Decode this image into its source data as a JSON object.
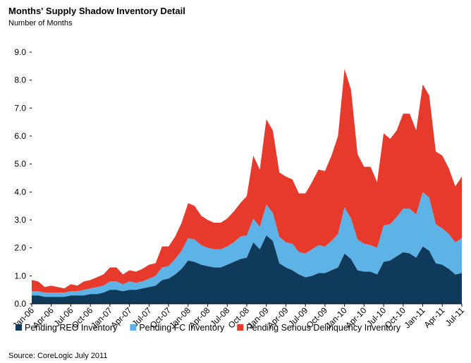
{
  "chart_data": {
    "type": "stacked_area",
    "title": "Months' Supply Shadow Inventory Detail",
    "subtitle": "Number of Months",
    "source": "Source: CoreLogic July 2011",
    "categories": [
      "Jan-06",
      null,
      null,
      "Apr-06",
      null,
      null,
      "Jul-06",
      null,
      null,
      "Oct-06",
      null,
      null,
      "Jan-07",
      null,
      null,
      "Apr-07",
      null,
      null,
      "Jul-07",
      null,
      null,
      "Oct-07",
      null,
      null,
      "Jan-08",
      null,
      null,
      "Apr-08",
      null,
      null,
      "Jul-08",
      null,
      null,
      "Oct-08",
      null,
      null,
      "Jan-09",
      null,
      null,
      "Apr-09",
      null,
      null,
      "Jul-09",
      null,
      null,
      "Oct-09",
      null,
      null,
      "Jan-10",
      null,
      null,
      "Apr-10",
      null,
      null,
      "Jul-10",
      null,
      null,
      "Oct-10",
      null,
      null,
      "Jan-11",
      null,
      null,
      "Apr-11",
      null,
      null,
      "Jul-11"
    ],
    "series": [
      {
        "name": "Pending REO Inventory",
        "color": "#0f3a5a",
        "values": [
          0.3,
          0.3,
          0.25,
          0.25,
          0.25,
          0.25,
          0.3,
          0.3,
          0.3,
          0.35,
          0.35,
          0.4,
          0.5,
          0.5,
          0.45,
          0.5,
          0.5,
          0.55,
          0.6,
          0.65,
          0.85,
          0.9,
          1.05,
          1.25,
          1.55,
          1.5,
          1.4,
          1.35,
          1.3,
          1.3,
          1.4,
          1.5,
          1.6,
          1.65,
          2.2,
          1.95,
          2.45,
          2.25,
          1.45,
          1.3,
          1.2,
          1.05,
          0.95,
          1.0,
          1.1,
          1.1,
          1.2,
          1.3,
          1.8,
          1.6,
          1.2,
          1.15,
          1.15,
          1.05,
          1.5,
          1.55,
          1.7,
          1.85,
          1.8,
          1.65,
          2.05,
          1.9,
          1.45,
          1.4,
          1.25,
          1.05,
          1.1
        ]
      },
      {
        "name": "Pending FC Inventory",
        "color": "#5db3e6",
        "values": [
          0.15,
          0.15,
          0.15,
          0.15,
          0.15,
          0.15,
          0.15,
          0.15,
          0.2,
          0.2,
          0.25,
          0.25,
          0.3,
          0.3,
          0.25,
          0.3,
          0.25,
          0.25,
          0.3,
          0.35,
          0.45,
          0.45,
          0.55,
          0.65,
          0.8,
          0.8,
          0.7,
          0.65,
          0.65,
          0.65,
          0.65,
          0.7,
          0.8,
          0.8,
          0.85,
          0.8,
          1.1,
          1.0,
          0.95,
          0.9,
          0.95,
          0.8,
          0.85,
          0.95,
          1.0,
          0.95,
          1.05,
          1.2,
          1.65,
          1.45,
          1.1,
          1.0,
          0.95,
          0.95,
          1.3,
          1.3,
          1.4,
          1.55,
          1.6,
          1.55,
          1.95,
          1.9,
          1.4,
          1.3,
          1.25,
          1.15,
          1.25
        ]
      },
      {
        "name": "Pending Serious Delinquency Inventory",
        "color": "#e63a2c",
        "values": [
          0.4,
          0.35,
          0.2,
          0.25,
          0.2,
          0.15,
          0.25,
          0.2,
          0.3,
          0.3,
          0.35,
          0.4,
          0.5,
          0.5,
          0.35,
          0.4,
          0.4,
          0.45,
          0.5,
          0.45,
          0.75,
          0.7,
          0.8,
          1.0,
          1.25,
          1.2,
          1.05,
          1.0,
          0.95,
          0.95,
          1.0,
          1.1,
          1.2,
          1.4,
          2.25,
          2.05,
          3.05,
          2.95,
          2.3,
          2.35,
          2.3,
          2.1,
          2.15,
          2.4,
          2.7,
          2.7,
          3.05,
          3.5,
          4.95,
          4.6,
          3.05,
          2.75,
          2.8,
          2.35,
          3.3,
          3.05,
          3.1,
          3.4,
          3.4,
          3.0,
          3.85,
          3.65,
          2.6,
          2.6,
          2.35,
          2.0,
          2.2
        ]
      }
    ],
    "ylim": [
      0,
      9
    ],
    "yticks": [
      {
        "value": 0,
        "label": "0.0"
      },
      {
        "value": 1,
        "label": "1.0"
      },
      {
        "value": 2,
        "label": "2.0"
      },
      {
        "value": 3,
        "label": "3.0"
      },
      {
        "value": 4,
        "label": "4.0"
      },
      {
        "value": 5,
        "label": "5.0"
      },
      {
        "value": 6,
        "label": "6.0"
      },
      {
        "value": 7,
        "label": "7.0"
      },
      {
        "value": 8,
        "label": "8.0"
      },
      {
        "value": 9,
        "label": "9.0"
      }
    ],
    "legend": "bottom"
  }
}
